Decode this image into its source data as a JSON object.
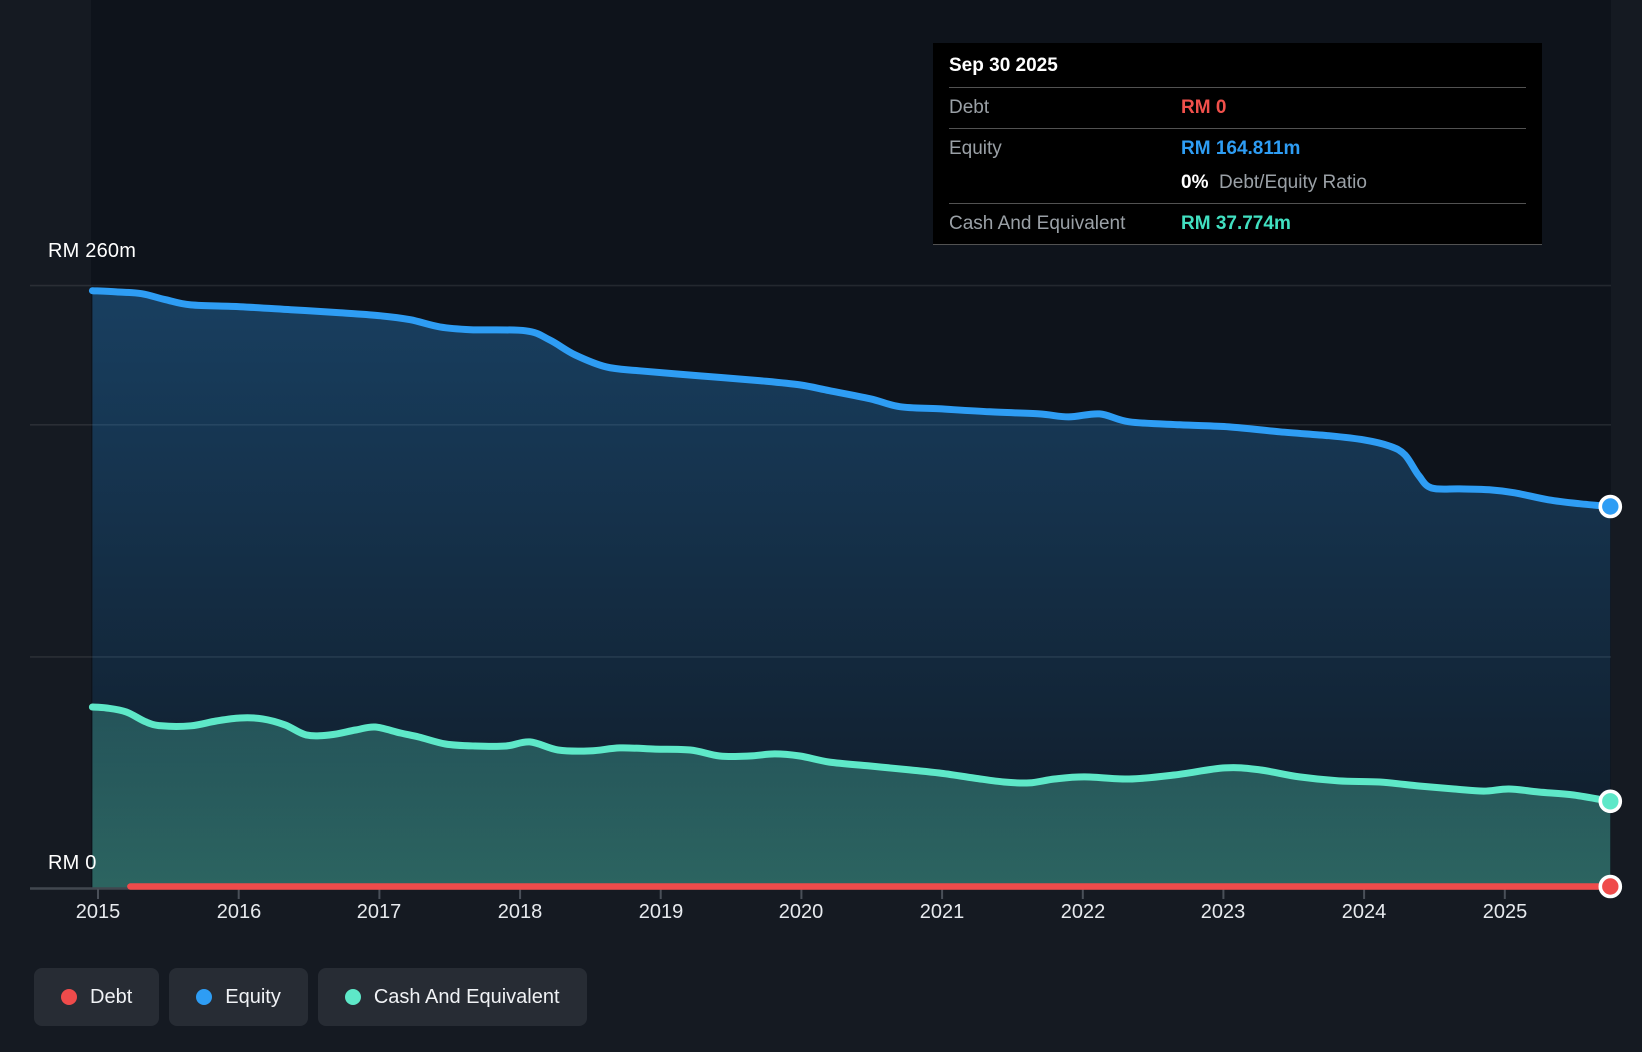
{
  "y_axis": {
    "top_label": "RM 260m",
    "bottom_label": "RM 0"
  },
  "x_axis": {
    "ticks": [
      2015,
      2016,
      2017,
      2018,
      2019,
      2020,
      2021,
      2022,
      2023,
      2024,
      2025
    ]
  },
  "tooltip": {
    "title": "Sep 30 2025",
    "rows": [
      {
        "label": "Debt",
        "value": "RM 0",
        "color_key": "debt"
      },
      {
        "label": "Equity",
        "value": "RM 164.811m",
        "color_key": "equity"
      },
      {
        "label": "Cash And Equivalent",
        "value": "RM 37.774m",
        "color_key": "cash"
      }
    ],
    "ratio_bold": "0%",
    "ratio_text": "Debt/Equity Ratio",
    "colors": {
      "debt": "#f1504b",
      "equity": "#2e9df4",
      "cash": "#41e0c1"
    }
  },
  "legend": {
    "items": [
      {
        "label": "Debt",
        "color": "#ef4b4b"
      },
      {
        "label": "Equity",
        "color": "#2e9df4"
      },
      {
        "label": "Cash And Equivalent",
        "color": "#5ee8c8"
      }
    ]
  },
  "chart_data": {
    "type": "area",
    "title": "Debt to Equity History",
    "x_unit": "year",
    "xlim": [
      2014.95,
      2025.755
    ],
    "ylim": [
      0,
      260
    ],
    "y_unit": "RM millions",
    "gridline_values": [
      260,
      200,
      100
    ],
    "grid": true,
    "legend_position": "bottom-left",
    "series": [
      {
        "name": "Equity",
        "color": "#2e9df4",
        "fill": "blue-gradient",
        "end_value": 164.811,
        "points": [
          [
            2014.96,
            257.8
          ],
          [
            2015.13,
            257.3
          ],
          [
            2015.31,
            256.5
          ],
          [
            2015.48,
            253.9
          ],
          [
            2015.66,
            251.7
          ],
          [
            2016.01,
            250.9
          ],
          [
            2016.37,
            249.6
          ],
          [
            2016.72,
            248.3
          ],
          [
            2017.01,
            247.0
          ],
          [
            2017.22,
            245.3
          ],
          [
            2017.43,
            242.2
          ],
          [
            2017.65,
            241.0
          ],
          [
            2018.04,
            240.5
          ],
          [
            2018.21,
            236.6
          ],
          [
            2018.39,
            230.2
          ],
          [
            2018.61,
            225.0
          ],
          [
            2018.85,
            223.3
          ],
          [
            2019.28,
            221.1
          ],
          [
            2019.71,
            219.0
          ],
          [
            2019.99,
            217.2
          ],
          [
            2020.2,
            214.7
          ],
          [
            2020.49,
            211.2
          ],
          [
            2020.7,
            207.8
          ],
          [
            2020.98,
            206.9
          ],
          [
            2021.34,
            205.6
          ],
          [
            2021.69,
            204.7
          ],
          [
            2021.9,
            203.4
          ],
          [
            2022.12,
            204.7
          ],
          [
            2022.33,
            201.3
          ],
          [
            2022.69,
            200.0
          ],
          [
            2023.04,
            199.1
          ],
          [
            2023.4,
            197.0
          ],
          [
            2023.75,
            195.3
          ],
          [
            2024.0,
            193.5
          ],
          [
            2024.18,
            190.9
          ],
          [
            2024.29,
            187.1
          ],
          [
            2024.39,
            178.0
          ],
          [
            2024.48,
            172.8
          ],
          [
            2024.68,
            172.4
          ],
          [
            2024.89,
            172.0
          ],
          [
            2025.07,
            170.7
          ],
          [
            2025.31,
            167.7
          ],
          [
            2025.53,
            166.0
          ],
          [
            2025.75,
            164.811
          ]
        ]
      },
      {
        "name": "Cash And Equivalent",
        "color": "#5ee8c8",
        "fill": "teal-gradient",
        "end_value": 37.774,
        "points": [
          [
            2014.96,
            78.4
          ],
          [
            2015.06,
            78.0
          ],
          [
            2015.2,
            76.3
          ],
          [
            2015.34,
            72.0
          ],
          [
            2015.45,
            70.3
          ],
          [
            2015.66,
            70.3
          ],
          [
            2015.84,
            72.4
          ],
          [
            2016.01,
            73.7
          ],
          [
            2016.17,
            73.3
          ],
          [
            2016.33,
            70.7
          ],
          [
            2016.48,
            66.4
          ],
          [
            2016.65,
            66.4
          ],
          [
            2016.83,
            68.5
          ],
          [
            2016.97,
            69.8
          ],
          [
            2017.15,
            67.2
          ],
          [
            2017.28,
            65.5
          ],
          [
            2017.47,
            62.5
          ],
          [
            2017.68,
            61.6
          ],
          [
            2017.9,
            61.6
          ],
          [
            2018.07,
            63.4
          ],
          [
            2018.27,
            59.9
          ],
          [
            2018.5,
            59.5
          ],
          [
            2018.71,
            60.8
          ],
          [
            2018.96,
            60.3
          ],
          [
            2019.21,
            59.9
          ],
          [
            2019.42,
            57.3
          ],
          [
            2019.63,
            57.3
          ],
          [
            2019.81,
            58.2
          ],
          [
            2019.99,
            57.3
          ],
          [
            2020.2,
            54.7
          ],
          [
            2020.49,
            53.0
          ],
          [
            2020.77,
            51.3
          ],
          [
            2020.98,
            50.0
          ],
          [
            2021.23,
            47.8
          ],
          [
            2021.44,
            46.1
          ],
          [
            2021.62,
            45.7
          ],
          [
            2021.8,
            47.4
          ],
          [
            2022.01,
            48.3
          ],
          [
            2022.33,
            47.4
          ],
          [
            2022.65,
            49.1
          ],
          [
            2023.01,
            52.2
          ],
          [
            2023.26,
            51.3
          ],
          [
            2023.54,
            48.3
          ],
          [
            2023.82,
            46.6
          ],
          [
            2024.11,
            46.1
          ],
          [
            2024.39,
            44.4
          ],
          [
            2024.64,
            43.1
          ],
          [
            2024.85,
            42.2
          ],
          [
            2025.03,
            43.1
          ],
          [
            2025.24,
            41.8
          ],
          [
            2025.49,
            40.5
          ],
          [
            2025.75,
            37.774
          ]
        ]
      },
      {
        "name": "Debt",
        "color": "#ef4b4b",
        "fill": "none",
        "end_value": 0,
        "points": [
          [
            2015.23,
            0
          ],
          [
            2025.75,
            0
          ]
        ]
      }
    ]
  }
}
